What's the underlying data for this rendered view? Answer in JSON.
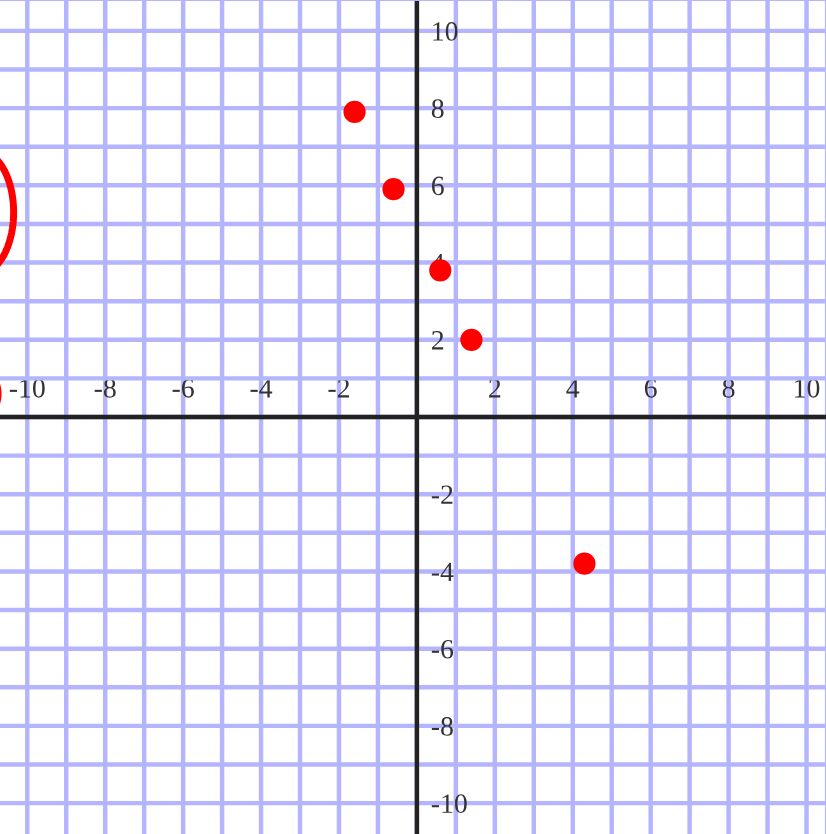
{
  "chart_data": {
    "type": "scatter",
    "x": [
      -1.6,
      -0.6,
      0.6,
      1.4,
      4.3
    ],
    "values": [
      7.9,
      5.9,
      3.8,
      2.0,
      -3.8
    ],
    "color": "#ff0000",
    "marker": "circle",
    "grid": true,
    "xlim": [
      -10.7,
      10.5
    ],
    "ylim": [
      -10.8,
      10.8
    ],
    "xticks": [
      -10,
      {
        "value": -9,
        "label": null
      },
      -8,
      {
        "value": -7,
        "label": null
      },
      -6,
      {
        "value": -5,
        "label": null
      },
      -4,
      {
        "value": -3,
        "label": null
      },
      -2,
      {
        "value": -1,
        "label": null
      },
      {
        "value": 0,
        "label": null
      },
      {
        "value": 1,
        "label": null
      },
      2,
      {
        "value": 3,
        "label": null
      },
      4,
      {
        "value": 5,
        "label": null
      },
      6,
      {
        "value": 7,
        "label": null
      },
      8,
      {
        "value": 9,
        "label": null
      },
      10
    ],
    "yticks": [
      -10,
      {
        "value": -9,
        "label": null
      },
      -8,
      {
        "value": -7,
        "label": null
      },
      -6,
      {
        "value": -5,
        "label": null
      },
      -4,
      {
        "value": -3,
        "label": null
      },
      -2,
      {
        "value": -1,
        "label": null
      },
      {
        "value": 0,
        "label": null
      },
      {
        "value": 1,
        "label": null
      },
      2,
      {
        "value": 3,
        "label": null
      },
      4,
      {
        "value": 5,
        "label": null
      },
      6,
      {
        "value": 7,
        "label": null
      },
      8,
      {
        "value": 9,
        "label": null
      },
      10
    ]
  }
}
